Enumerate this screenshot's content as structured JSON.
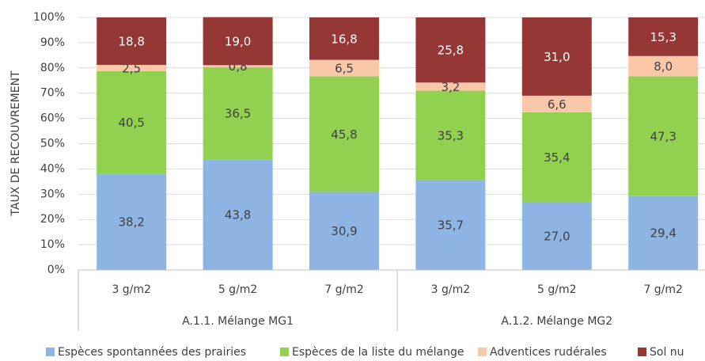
{
  "chart_data": {
    "type": "stacked_bar",
    "y_label": "TAUX DE RECOUVREMENT",
    "categories": [
      "3 g/m2",
      "5 g/m2",
      "7 g/m2",
      "3 g/m2",
      "5 g/m2",
      "7 g/m2"
    ],
    "groups": [
      "A.1.1. Mélange MG1",
      "A.1.2. Mélange MG2"
    ],
    "series": [
      {
        "name": "Espèces spontannées des prairies",
        "color": "#8eb4e3",
        "values": [
          38.2,
          43.8,
          30.9,
          35.7,
          27.0,
          29.4
        ],
        "value_labels": [
          "38,2",
          "43,8",
          "30,9",
          "35,7",
          "27,0",
          "29,4"
        ]
      },
      {
        "name": "Espèces de la liste du mélange",
        "color": "#92d050",
        "values": [
          40.5,
          36.5,
          45.8,
          35.3,
          35.4,
          47.3
        ],
        "value_labels": [
          "40,5",
          "36,5",
          "45,8",
          "35,3",
          "35,4",
          "47,3"
        ]
      },
      {
        "name": "Adventices rudérales",
        "color": "#fac8a8",
        "values": [
          2.5,
          0.8,
          6.5,
          3.2,
          6.6,
          8.0
        ],
        "value_labels": [
          "2,5",
          "0,8",
          "6,5",
          "3,2",
          "6,6",
          "8,0"
        ]
      },
      {
        "name": "Sol nu",
        "color": "#953735",
        "values": [
          18.8,
          19.0,
          16.8,
          25.8,
          31.0,
          15.3
        ],
        "value_labels": [
          "18,8",
          "19,0",
          "16,8",
          "25,8",
          "31,0",
          "15,3"
        ]
      }
    ],
    "ylim": [
      0,
      100
    ],
    "yticks": [
      {
        "value": 0,
        "label": "0%"
      },
      {
        "value": 10,
        "label": "10%"
      },
      {
        "value": 20,
        "label": "20%"
      },
      {
        "value": 30,
        "label": "30%"
      },
      {
        "value": 40,
        "label": "40%"
      },
      {
        "value": 50,
        "label": "50%"
      },
      {
        "value": 60,
        "label": "60%"
      },
      {
        "value": 70,
        "label": "70%"
      },
      {
        "value": 80,
        "label": "80%"
      },
      {
        "value": 90,
        "label": "90%"
      },
      {
        "value": 100,
        "label": "100%"
      }
    ],
    "grid": true,
    "legend": "bottom"
  }
}
